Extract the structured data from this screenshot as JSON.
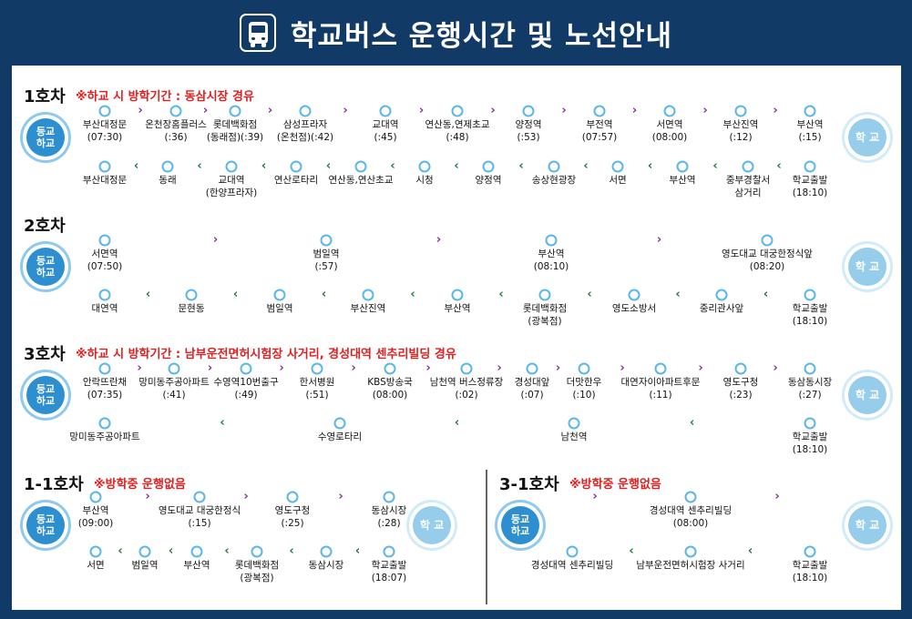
{
  "header": {
    "title": "학교버스 운행시간 및 노선안내",
    "icon": "bus-icon"
  },
  "hubs": {
    "start_top": "등교",
    "start_bottom": "하교",
    "end": "학 교"
  },
  "colors": {
    "background": "#123a66",
    "note": "#e02020",
    "dot": "#5ab7e8",
    "arrow_out": "#8a2a9c",
    "arrow_back": "#1e7a3e"
  },
  "routes": [
    {
      "name": "1호차",
      "note": "※하교 시 방학기간 : 동삼시장 경유",
      "outbound": [
        "부산대정문\n(07:30)",
        "온천장홈플러스\n(:36)",
        "롯데백화점\n(동래점)(:39)",
        "삼성프라자\n(온천점)(:42)",
        "교대역\n(:45)",
        "연산동,연제초교\n(:48)",
        "양정역\n(:53)",
        "부전역\n(07:57)",
        "서면역\n(08:00)",
        "부산진역\n(:12)",
        "부산역\n(:15)"
      ],
      "inbound": [
        "부산대정문",
        "동래",
        "교대역\n(한양프라자)",
        "연산로타리",
        "연산동,연산초교",
        "시청",
        "양정역",
        "송상현광장",
        "서면",
        "부산역",
        "중부경찰서\n삼거리",
        "학교출발\n(18:10)"
      ]
    },
    {
      "name": "2호차",
      "note": "",
      "outbound": [
        "서면역\n(07:50)",
        "범일역\n(:57)",
        "부산역\n(08:10)",
        "영도대교 대궁한정식앞\n(08:20)"
      ],
      "inbound": [
        "대연역",
        "문현동",
        "범일역",
        "부산진역",
        "부산역",
        "롯데백화점\n(광복점)",
        "영도소방서",
        "중리관사앞",
        "학교출발\n(18:10)"
      ]
    },
    {
      "name": "3호차",
      "note": "※하교 시 방학기간 : 남부운전면허시험장 사거리, 경성대역 센추리빌딩 경유",
      "outbound": [
        "안락뜨란채\n(07:35)",
        "망미동주공아파트\n(:41)",
        "수영역10번출구\n(:49)",
        "한서병원\n(:51)",
        "KBS방송국\n(08:00)",
        "남천역 버스정류장\n(:02)",
        "경성대앞\n(:07)",
        "더맛한우\n(:10)",
        "대연자이아파트후문\n(:11)",
        "영도구청\n(:23)",
        "동삼동시장\n(:27)"
      ],
      "inbound": [
        "망미동주공아파트",
        "수영로타리",
        "남천역",
        "학교출발\n(18:10)"
      ]
    },
    {
      "name": "1-1호차",
      "note": "※방학중 운행없음",
      "outbound": [
        "부산역\n(09:00)",
        "영도대교 대궁한정식\n(:15)",
        "영도구청\n(:25)",
        "동삼시장\n(:28)"
      ],
      "inbound": [
        "서면",
        "범일역",
        "부산역",
        "롯데백화점\n(광복점)",
        "동삼시장",
        "학교출발\n(18:07)"
      ]
    },
    {
      "name": "3-1호차",
      "note": "※방학중 운행없음",
      "outbound": [
        "경성대역 센추리빌딩\n(08:00)"
      ],
      "inbound": [
        "경성대역 센추리빌딩",
        "남부운전면허시험장 사거리",
        "학교출발\n(18:10)"
      ]
    }
  ]
}
